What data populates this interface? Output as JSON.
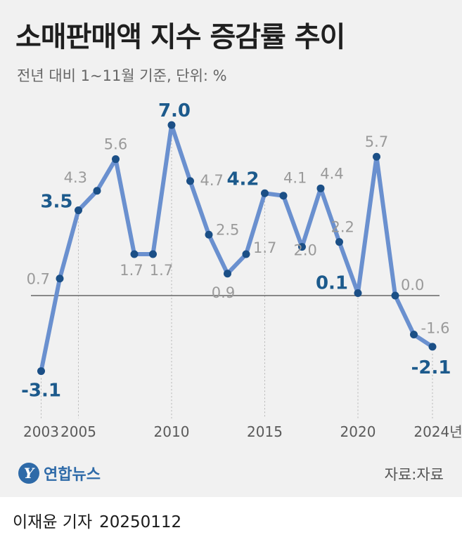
{
  "header": {
    "title": "소매판매액 지수 증감률 추이",
    "subtitle": "전년 대비 1~11월 기준, 단위: %"
  },
  "footer": {
    "logo_text": "연합뉴스",
    "logo_mark": "Y",
    "source": "자료:자료",
    "reporter": "이재윤 기자",
    "date": "20250112"
  },
  "colors": {
    "line": "#6a90cf",
    "marker": "#1b4f86",
    "highlight_label": "#1c5a8c",
    "normal_label": "#9a9a9a",
    "zero_line": "#666666"
  },
  "chart_data": {
    "type": "line",
    "x": [
      2003,
      2004,
      2005,
      2006,
      2007,
      2008,
      2009,
      2010,
      2011,
      2012,
      2013,
      2014,
      2015,
      2016,
      2017,
      2018,
      2019,
      2020,
      2021,
      2022,
      2023,
      2024
    ],
    "series": [
      {
        "values": [
          -3.1,
          0.7,
          3.5,
          4.3,
          5.6,
          1.7,
          1.7,
          7.0,
          4.7,
          2.5,
          0.9,
          1.7,
          4.2,
          4.1,
          2.0,
          4.4,
          2.2,
          0.1,
          5.7,
          0.0,
          -1.6,
          -2.1
        ]
      }
    ],
    "point_labels": [
      "-3.1",
      "0.7",
      "3.5",
      "4.3",
      "5.6",
      "1.7",
      "1.7",
      "7.0",
      "4.7",
      "2.5",
      "0.9",
      "1.7",
      "4.2",
      "4.1",
      "2.0",
      "4.4",
      "2.2",
      "0.1",
      "5.7",
      "0.0",
      "-1.6",
      "-2.1"
    ],
    "highlighted": [
      2003,
      2005,
      2010,
      2015,
      2020,
      2024
    ],
    "x_tick_labels": [
      "2003",
      "2005",
      "2010",
      "2015",
      "2020",
      "2024년"
    ],
    "x_tick_years": [
      2003,
      2005,
      2010,
      2015,
      2020,
      2024
    ],
    "reference_line": 0,
    "ylim": [
      -4.5,
      7.5
    ],
    "title": "소매판매액 지수 증감률 추이",
    "subtitle": "전년 대비 1~11월 기준, 단위: %"
  }
}
